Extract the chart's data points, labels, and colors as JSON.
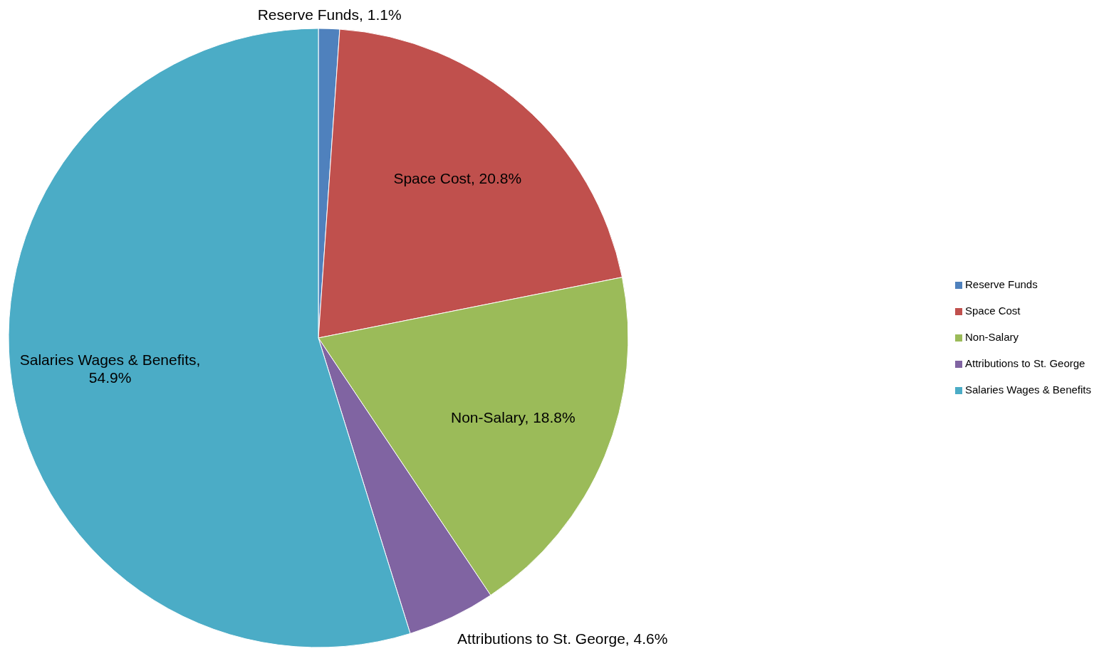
{
  "chart_data": {
    "type": "pie",
    "categories": [
      "Reserve Funds",
      "Space Cost",
      "Non-Salary",
      "Attributions to St. George",
      "Salaries Wages & Benefits"
    ],
    "values": [
      1.1,
      20.8,
      18.8,
      4.6,
      54.9
    ],
    "colors": [
      "#4f81bd",
      "#c0504d",
      "#9bbb59",
      "#8064a2",
      "#4bacc6"
    ],
    "value_labels": [
      "Reserve Funds, 1.1%",
      "Space Cost, 20.8%",
      "Non-Salary, 18.8%",
      "Attributions to St. George, 4.6%",
      "Salaries Wages & Benefits, 54.9%"
    ],
    "legend": "right"
  }
}
